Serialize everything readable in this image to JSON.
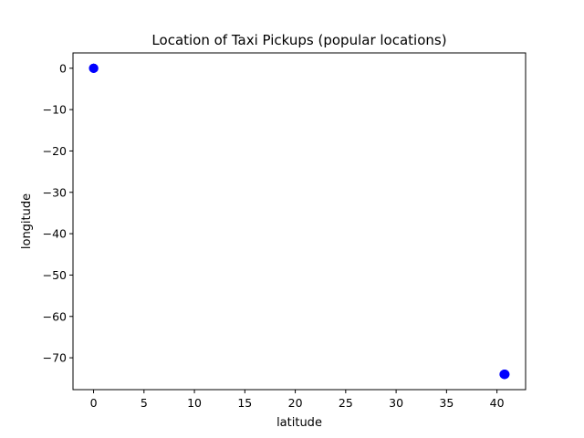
{
  "chart_data": {
    "type": "scatter",
    "title": "Location of Taxi Pickups (popular locations)",
    "xlabel": "latitude",
    "ylabel": "longitude",
    "xlim": [
      -2.04,
      42.84
    ],
    "ylim": [
      -77.7,
      3.7
    ],
    "xticks": [
      0,
      5,
      10,
      15,
      20,
      25,
      30,
      35,
      40
    ],
    "yticks": [
      0,
      -10,
      -20,
      -30,
      -40,
      -50,
      -60,
      -70
    ],
    "grid": false,
    "marker_color": "#0000ff",
    "series": [
      {
        "x": [
          0.0,
          0.0,
          0.01,
          0.02,
          40.7,
          40.72,
          40.74,
          40.75,
          40.76,
          40.77,
          40.78,
          40.8,
          40.76,
          40.73
        ],
        "y": [
          0.0,
          -0.01,
          0.0,
          -0.02,
          -74.0,
          -73.98,
          -73.99,
          -74.01,
          -73.97,
          -73.96,
          -73.98,
          -74.0,
          -74.02,
          -74.01
        ]
      }
    ]
  }
}
